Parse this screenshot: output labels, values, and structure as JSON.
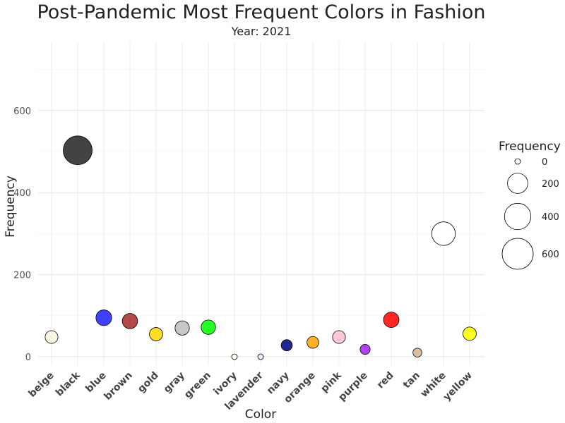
{
  "chart_data": {
    "type": "scatter",
    "title": "Post-Pandemic Most Frequent Colors in Fashion",
    "subtitle": "Year: 2021",
    "xlabel": "Color",
    "ylabel": "Frequency",
    "ylim": [
      -20,
      760
    ],
    "yticks": [
      0,
      200,
      400,
      600
    ],
    "grid": true,
    "legend": {
      "title": "Frequency",
      "position": "right",
      "values": [
        0,
        200,
        400,
        600
      ],
      "labels": [
        "0",
        "200",
        "400",
        "600"
      ]
    },
    "categories": [
      "beige",
      "black",
      "blue",
      "brown",
      "gold",
      "gray",
      "green",
      "ivory",
      "lavender",
      "navy",
      "orange",
      "pink",
      "purple",
      "red",
      "tan",
      "white",
      "yellow"
    ],
    "values": [
      48,
      503,
      95,
      87,
      55,
      70,
      72,
      0,
      0,
      28,
      35,
      48,
      18,
      90,
      10,
      300,
      56
    ],
    "colors": [
      "#f5f5dc",
      "#222222",
      "#1f1fff",
      "#a52a2a",
      "#ffd700",
      "#bebebe",
      "#00ff00",
      "#fffff0",
      "#e6e6fa",
      "#000080",
      "#ffa500",
      "#ffc0cb",
      "#a020f0",
      "#ff0000",
      "#d2b48c",
      "#ffffff",
      "#ffff00"
    ]
  }
}
